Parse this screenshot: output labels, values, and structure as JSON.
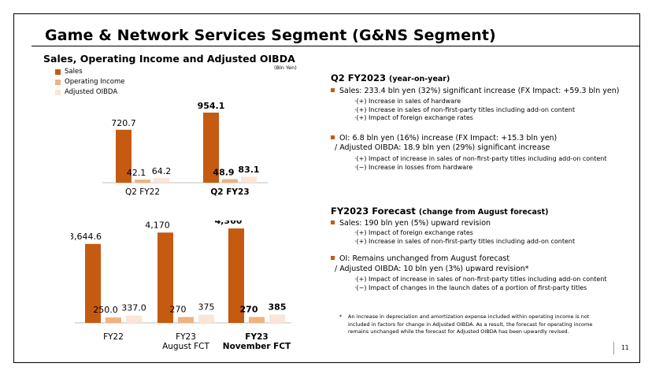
{
  "page": {
    "title": "Game & Network Services Segment (G&NS Segment)",
    "subtitle": "Sales, Operating Income and Adjusted OIBDA",
    "unit": "(Bln Yen)",
    "page_number": "11"
  },
  "colors": {
    "sales": "#c55a11",
    "oi": "#f0b27f",
    "oibda": "#fbe5d6"
  },
  "legend": [
    "Sales",
    "Operating Income",
    "Adjusted OIBDA"
  ],
  "chart_data": [
    {
      "type": "bar",
      "categories": [
        "Q2 FY22",
        "Q2 FY23"
      ],
      "series": [
        {
          "name": "Sales",
          "values": [
            720.7,
            954.1
          ],
          "labels": [
            "720.7",
            "954.1"
          ]
        },
        {
          "name": "Operating Income",
          "values": [
            42.1,
            48.9
          ],
          "labels": [
            "42.1",
            "48.9"
          ]
        },
        {
          "name": "Adjusted OIBDA",
          "values": [
            64.2,
            83.1
          ],
          "labels": [
            "64.2",
            "83.1"
          ]
        }
      ],
      "bold_category": "Q2 FY23"
    },
    {
      "type": "bar",
      "categories": [
        "FY22",
        "FY23 August FCT",
        "FY23 November FCT"
      ],
      "category_lines": [
        [
          "FY22"
        ],
        [
          "FY23",
          "August FCT"
        ],
        [
          "FY23",
          "November FCT"
        ]
      ],
      "series": [
        {
          "name": "Sales",
          "values": [
            3644.6,
            4170,
            4360
          ],
          "labels": [
            "3,644.6",
            "4,170",
            "4,360"
          ]
        },
        {
          "name": "Operating Income",
          "values": [
            250.0,
            270,
            270
          ],
          "labels": [
            "250.0",
            "270",
            "270"
          ]
        },
        {
          "name": "Adjusted OIBDA",
          "values": [
            337.0,
            375,
            385
          ],
          "labels": [
            "337.0",
            "375",
            "385"
          ]
        }
      ],
      "bold_category": "FY23 November FCT"
    }
  ],
  "q2": {
    "heading": "Q2 FY2023",
    "heading_note": "(year-on-year)",
    "sales": "Sales: 233.4 bln yen (32%) significant increase (FX Impact: +59.3 bln yen)",
    "sales_subs": [
      "·(+) Increase in sales of hardware",
      "·(+) Increase in sales of non-first-party titles including add-on content",
      "·(+) Impact of foreign exchange rates"
    ],
    "oi": "OI:  6.8 bln yen (16%) increase  (FX Impact: +15.3 bln yen)",
    "oibda": "/ Adjusted OIBDA: 18.9 bln yen (29%) significant increase",
    "oi_subs": [
      "·(+) Impact of increase in sales of non-first-party titles including add-on content",
      "·(−) Increase in losses from hardware"
    ]
  },
  "forecast": {
    "heading": "FY2023 Forecast",
    "heading_note": "(change from August forecast)",
    "sales": "Sales: 190 bln yen (5%) upward revision",
    "sales_subs": [
      "·(+) Impact of foreign exchange rates",
      "·(+) Increase in sales of non-first-party titles including add-on content"
    ],
    "oi": "OI: Remains unchanged from August forecast",
    "oibda": "/ Adjusted OIBDA: 10 bln yen (3%) upward revision*",
    "oi_subs": [
      "·(+) Impact of increase in sales of non-first-party titles including add-on content",
      "·(−) Impact of changes in the launch dates of a portion of first-party titles"
    ]
  },
  "footnote": {
    "mark": "*",
    "lines": [
      "An increase in depreciation and amortization expense included within operating income is not",
      "included in factors for change in Adjusted OIBDA. As a result, the forecast for operating income",
      "remains unchanged while the forecast for Adjusted OIBDA has been upwardly revised."
    ]
  }
}
